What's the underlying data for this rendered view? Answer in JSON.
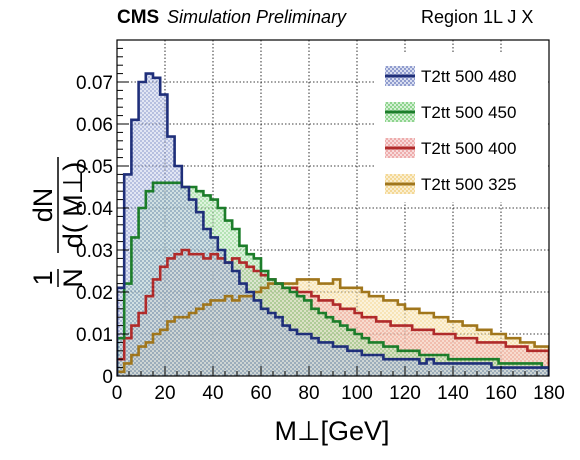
{
  "header": {
    "experiment": "CMS",
    "status": "Simulation Preliminary",
    "region": "Region 1L J X"
  },
  "chart_data": {
    "type": "area",
    "xlabel": "M⊥[GeV]",
    "ylabel": {
      "prefix_num": "1",
      "prefix_den": "N",
      "num": "dN",
      "den": "d( M⊥)"
    },
    "xlim": [
      0,
      180
    ],
    "ylim": [
      0,
      0.08
    ],
    "x_ticks": [
      0,
      20,
      40,
      60,
      80,
      100,
      120,
      140,
      160,
      180
    ],
    "y_ticks": [
      0,
      0.01,
      0.02,
      0.03,
      0.04,
      0.05,
      0.06,
      0.07
    ],
    "y_tick_labels": [
      "0",
      "0.01",
      "0.02",
      "0.03",
      "0.04",
      "0.05",
      "0.06",
      "0.07"
    ],
    "grid": true,
    "legend_position": "top-right",
    "bin_width": 3,
    "bin_edges_start": 0,
    "series": [
      {
        "name": "T2tt 500 480",
        "color": "#1f2f7a",
        "fill": "#bfc8e6",
        "values": [
          0.021,
          0.048,
          0.061,
          0.07,
          0.072,
          0.071,
          0.067,
          0.057,
          0.05,
          0.045,
          0.042,
          0.039,
          0.035,
          0.033,
          0.03,
          0.027,
          0.025,
          0.022,
          0.02,
          0.018,
          0.016,
          0.015,
          0.014,
          0.012,
          0.011,
          0.01,
          0.01,
          0.009,
          0.008,
          0.008,
          0.007,
          0.007,
          0.006,
          0.006,
          0.005,
          0.005,
          0.005,
          0.004,
          0.004,
          0.004,
          0.004,
          0.004,
          0.003,
          0.004,
          0.003,
          0.003,
          0.003,
          0.003,
          0.003,
          0.003,
          0.003,
          0.003,
          0.002,
          0.002,
          0.002,
          0.002,
          0.002,
          0.002,
          0.002,
          0.002
        ]
      },
      {
        "name": "T2tt 500 450",
        "color": "#1c7d2a",
        "fill": "#b8e6b8",
        "values": [
          0.009,
          0.022,
          0.033,
          0.04,
          0.044,
          0.046,
          0.046,
          0.046,
          0.046,
          0.045,
          0.045,
          0.044,
          0.043,
          0.042,
          0.04,
          0.037,
          0.035,
          0.031,
          0.029,
          0.028,
          0.025,
          0.023,
          0.022,
          0.021,
          0.02,
          0.019,
          0.018,
          0.016,
          0.015,
          0.014,
          0.013,
          0.012,
          0.011,
          0.01,
          0.009,
          0.008,
          0.008,
          0.007,
          0.007,
          0.006,
          0.006,
          0.006,
          0.005,
          0.005,
          0.005,
          0.005,
          0.004,
          0.004,
          0.004,
          0.004,
          0.004,
          0.004,
          0.004,
          0.003,
          0.003,
          0.003,
          0.003,
          0.003,
          0.003,
          0.002
        ]
      },
      {
        "name": "T2tt 500 400",
        "color": "#b02a2a",
        "fill": "#f2c2c2",
        "values": [
          0.004,
          0.009,
          0.012,
          0.015,
          0.019,
          0.023,
          0.026,
          0.028,
          0.029,
          0.03,
          0.029,
          0.029,
          0.028,
          0.029,
          0.028,
          0.027,
          0.028,
          0.027,
          0.026,
          0.025,
          0.024,
          0.023,
          0.022,
          0.021,
          0.021,
          0.02,
          0.02,
          0.019,
          0.018,
          0.018,
          0.017,
          0.016,
          0.016,
          0.015,
          0.014,
          0.014,
          0.013,
          0.013,
          0.012,
          0.012,
          0.012,
          0.011,
          0.011,
          0.011,
          0.01,
          0.01,
          0.01,
          0.009,
          0.009,
          0.009,
          0.008,
          0.008,
          0.008,
          0.008,
          0.007,
          0.007,
          0.007,
          0.006,
          0.006,
          0.006
        ]
      },
      {
        "name": "T2tt 500 325",
        "color": "#a0761c",
        "fill": "#f7e3b0",
        "values": [
          0.001,
          0.003,
          0.005,
          0.007,
          0.008,
          0.01,
          0.011,
          0.013,
          0.014,
          0.014,
          0.015,
          0.016,
          0.017,
          0.018,
          0.018,
          0.019,
          0.018,
          0.019,
          0.019,
          0.02,
          0.021,
          0.022,
          0.022,
          0.022,
          0.022,
          0.023,
          0.023,
          0.023,
          0.022,
          0.022,
          0.023,
          0.021,
          0.021,
          0.021,
          0.02,
          0.019,
          0.019,
          0.018,
          0.018,
          0.017,
          0.016,
          0.016,
          0.015,
          0.015,
          0.014,
          0.014,
          0.013,
          0.013,
          0.012,
          0.012,
          0.011,
          0.011,
          0.01,
          0.01,
          0.009,
          0.009,
          0.008,
          0.008,
          0.007,
          0.007
        ]
      }
    ]
  }
}
